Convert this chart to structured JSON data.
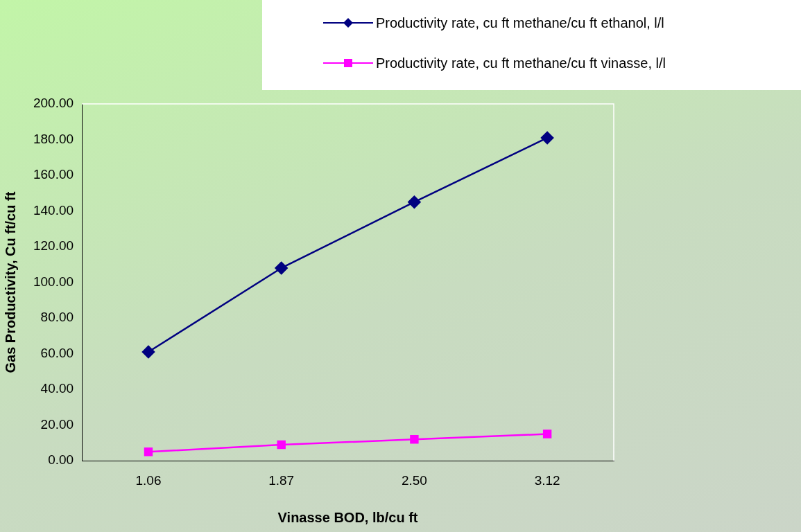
{
  "chart_data": {
    "type": "line",
    "xlabel": "Vinasse BOD, lb/cu ft",
    "ylabel": "Gas Productivity, Cu ft/cu ft",
    "categories": [
      "1.06",
      "1.87",
      "2.50",
      "3.12"
    ],
    "series": [
      {
        "name": "Productivity rate, cu ft methane/cu ft ethanol, l/l",
        "color": "#000080",
        "marker": "diamond",
        "values": [
          61,
          108,
          145,
          181
        ]
      },
      {
        "name": "Productivity rate, cu ft methane/cu ft vinasse, l/l",
        "color": "#ff00ff",
        "marker": "square",
        "values": [
          5,
          9,
          12,
          15
        ]
      }
    ],
    "ylim": [
      0,
      200
    ],
    "yticks": [
      {
        "value": 0,
        "label": "0.00"
      },
      {
        "value": 20,
        "label": "20.00"
      },
      {
        "value": 40,
        "label": "40.00"
      },
      {
        "value": 60,
        "label": "60.00"
      },
      {
        "value": 80,
        "label": "80.00"
      },
      {
        "value": 100,
        "label": "100.00"
      },
      {
        "value": 120,
        "label": "120.00"
      },
      {
        "value": 140,
        "label": "140.00"
      },
      {
        "value": 160,
        "label": "160.00"
      },
      {
        "value": 180,
        "label": "180.00"
      },
      {
        "value": 200,
        "label": "200.00"
      }
    ],
    "grid": false,
    "legend": "top right"
  }
}
